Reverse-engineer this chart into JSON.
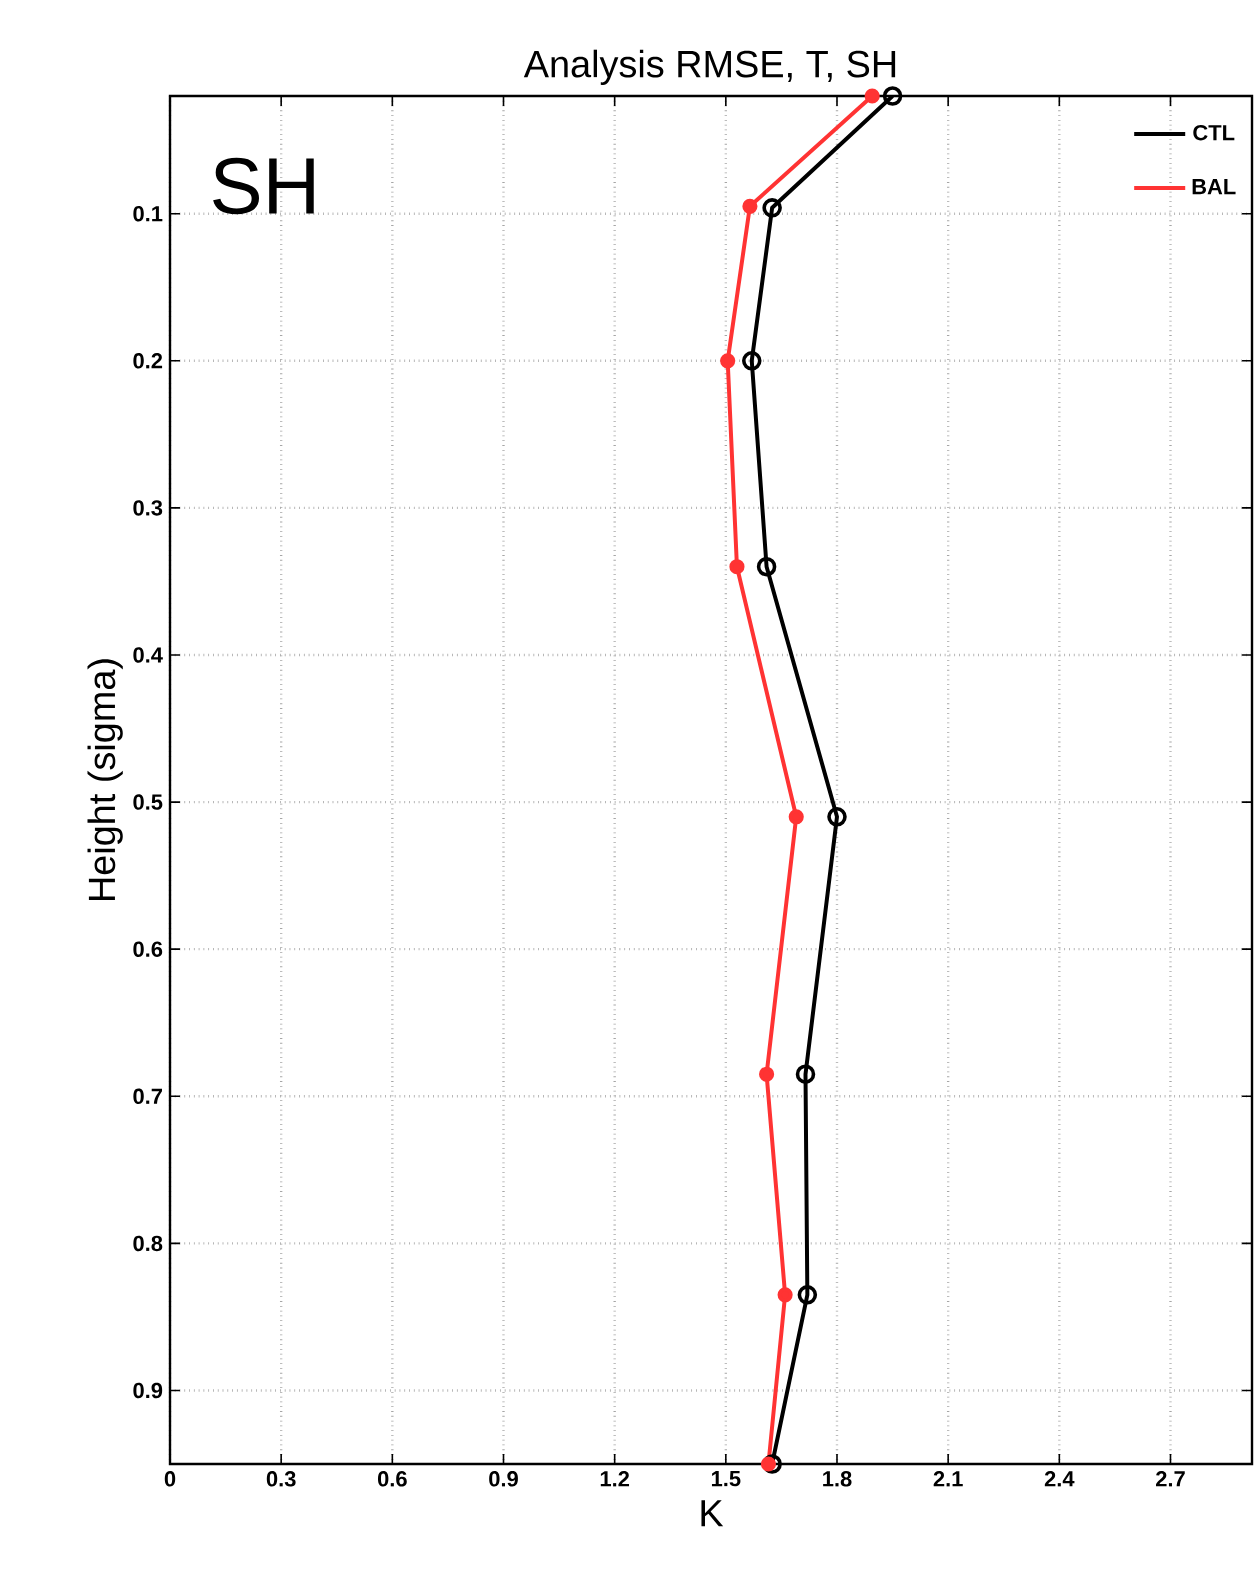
{
  "chart_data": {
    "type": "line",
    "title": "Analysis RMSE, T, SH",
    "xlabel": "K",
    "ylabel": "Height (sigma)",
    "annotations": [
      "SH"
    ],
    "series": [
      {
        "name": "CTL",
        "color": "#000000",
        "x": [
          1.95,
          1.625,
          1.57,
          1.61,
          1.8,
          1.715,
          1.72,
          1.625
        ],
        "values": [
          0.02,
          0.096,
          0.2,
          0.34,
          0.51,
          0.685,
          0.835,
          0.95
        ]
      },
      {
        "name": "BAL",
        "color": "#ff3333",
        "x": [
          1.895,
          1.565,
          1.505,
          1.53,
          1.69,
          1.61,
          1.66,
          1.615
        ],
        "values": [
          0.02,
          0.095,
          0.2,
          0.34,
          0.51,
          0.685,
          0.835,
          0.95
        ]
      }
    ],
    "xlim": [
      0,
      2.92
    ],
    "ylim": [
      0.95,
      0.02
    ],
    "xticks": [
      0,
      0.3,
      0.6,
      0.9,
      1.2,
      1.5,
      1.8,
      2.1,
      2.4,
      2.7
    ],
    "yticks": [
      0.1,
      0.2,
      0.3,
      0.4,
      0.5,
      0.6,
      0.7,
      0.8,
      0.9
    ],
    "grid": true,
    "legend": "top right",
    "marker": "circle",
    "line_style": "solid"
  }
}
